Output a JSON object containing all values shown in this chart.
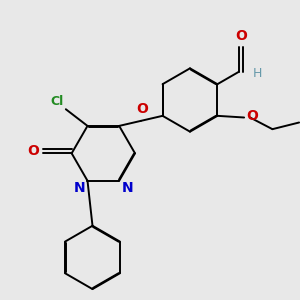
{
  "background_color": "#e8e8e8",
  "bond_color": "#000000",
  "atom_colors": {
    "O": "#cc0000",
    "N": "#0000cc",
    "Cl": "#228B22",
    "H": "#6699aa",
    "C": "#000000"
  },
  "figsize": [
    3.0,
    3.0
  ],
  "dpi": 100
}
